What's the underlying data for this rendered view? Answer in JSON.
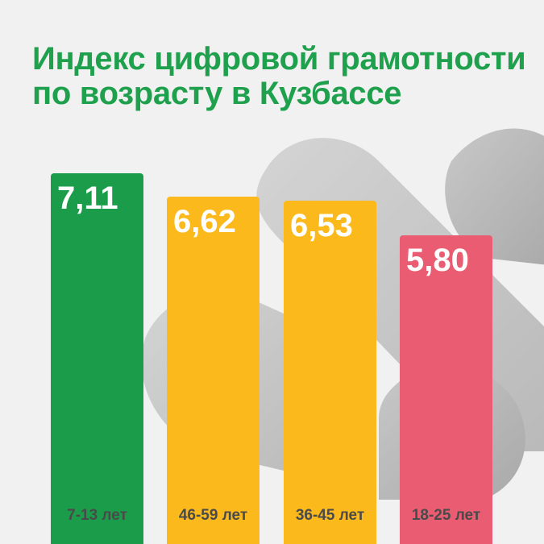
{
  "chart_data": {
    "type": "bar",
    "title": "Индекс цифровой грамотности по возрасту в Кузбассе",
    "categories": [
      "7-13 лет",
      "46-59 лет",
      "36-45 лет",
      "18-25 лет"
    ],
    "values": [
      7.11,
      6.62,
      6.53,
      5.8
    ],
    "value_labels": [
      "7,11",
      "6,62",
      "6,53",
      "5,80"
    ],
    "colors": [
      "#1a9c4b",
      "#fbb91b",
      "#fbb91b",
      "#e95c72"
    ],
    "title_color": "#1fa04d",
    "label_color": "#4a4a4a",
    "value_label_color": "#ffffff",
    "xlabel": "",
    "ylabel": "",
    "grid": false,
    "legend": "none",
    "background_image": "gray-3d-symbol"
  }
}
